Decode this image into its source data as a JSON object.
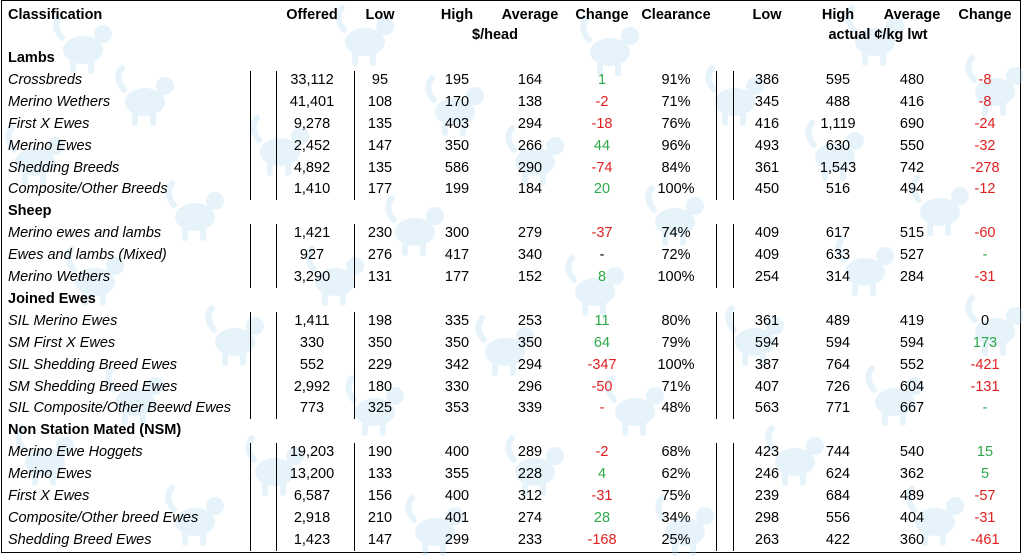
{
  "headers": {
    "classification": "Classification",
    "offered": "Offered",
    "low": "Low",
    "high": "High",
    "average": "Average",
    "change": "Change",
    "clearance": "Clearance",
    "low2": "Low",
    "high2": "High",
    "average2": "Average",
    "change2": "Change",
    "unit_head": "$/head",
    "unit_kg": "actual ¢/kg lwt"
  },
  "colors": {
    "positive": "#2ea84a",
    "negative": "#e02020",
    "watermark": "#a9d6f0"
  },
  "watermark_icon": "sheep-logo-icon",
  "rows": [
    {
      "type": "section",
      "label": "Lambs"
    },
    {
      "type": "data",
      "name": "Crossbreds",
      "offered": "33,112",
      "low": "95",
      "high": "195",
      "avg": "164",
      "chg": "1",
      "chgs": "pos",
      "clr": "91%",
      "low2": "386",
      "high2": "595",
      "avg2": "480",
      "chg2": "-8",
      "chg2s": "neg"
    },
    {
      "type": "data",
      "name": "Merino Wethers",
      "offered": "41,401",
      "low": "108",
      "high": "170",
      "avg": "138",
      "chg": "-2",
      "chgs": "neg",
      "clr": "71%",
      "low2": "345",
      "high2": "488",
      "avg2": "416",
      "chg2": "-8",
      "chg2s": "neg"
    },
    {
      "type": "data",
      "name": "First X Ewes",
      "offered": "9,278",
      "low": "135",
      "high": "403",
      "avg": "294",
      "chg": "-18",
      "chgs": "neg",
      "clr": "76%",
      "low2": "416",
      "high2": "1,119",
      "avg2": "690",
      "chg2": "-24",
      "chg2s": "neg"
    },
    {
      "type": "data",
      "name": "Merino Ewes",
      "offered": "2,452",
      "low": "147",
      "high": "350",
      "avg": "266",
      "chg": "44",
      "chgs": "pos",
      "clr": "96%",
      "low2": "493",
      "high2": "630",
      "avg2": "550",
      "chg2": "-32",
      "chg2s": "neg"
    },
    {
      "type": "data",
      "name": "Shedding Breeds",
      "offered": "4,892",
      "low": "135",
      "high": "586",
      "avg": "290",
      "chg": "-74",
      "chgs": "neg",
      "clr": "84%",
      "low2": "361",
      "high2": "1,543",
      "avg2": "742",
      "chg2": "-278",
      "chg2s": "neg"
    },
    {
      "type": "data",
      "name": "Composite/Other Breeds",
      "offered": "1,410",
      "low": "177",
      "high": "199",
      "avg": "184",
      "chg": "20",
      "chgs": "pos",
      "clr": "100%",
      "low2": "450",
      "high2": "516",
      "avg2": "494",
      "chg2": "-12",
      "chg2s": "neg"
    },
    {
      "type": "section",
      "label": "Sheep"
    },
    {
      "type": "data",
      "name": "Merino ewes and lambs",
      "offered": "1,421",
      "low": "230",
      "high": "300",
      "avg": "279",
      "chg": "-37",
      "chgs": "neg",
      "clr": "74%",
      "low2": "409",
      "high2": "617",
      "avg2": "515",
      "chg2": "-60",
      "chg2s": "neg"
    },
    {
      "type": "data",
      "name": "Ewes and lambs (Mixed)",
      "offered": "927",
      "low": "276",
      "high": "417",
      "avg": "340",
      "chg": "-",
      "chgs": "neu",
      "clr": "72%",
      "low2": "409",
      "high2": "633",
      "avg2": "527",
      "chg2": "-",
      "chg2s": "pos"
    },
    {
      "type": "data",
      "name": "Merino Wethers",
      "offered": "3,290",
      "low": "131",
      "high": "177",
      "avg": "152",
      "chg": "8",
      "chgs": "pos",
      "clr": "100%",
      "low2": "254",
      "high2": "314",
      "avg2": "284",
      "chg2": "-31",
      "chg2s": "neg"
    },
    {
      "type": "section",
      "label": "Joined Ewes"
    },
    {
      "type": "data",
      "name": "SIL Merino Ewes",
      "offered": "1,411",
      "low": "198",
      "high": "335",
      "avg": "253",
      "chg": "11",
      "chgs": "pos",
      "clr": "80%",
      "low2": "361",
      "high2": "489",
      "avg2": "419",
      "chg2": "0",
      "chg2s": "neu"
    },
    {
      "type": "data",
      "name": "SM First X Ewes",
      "offered": "330",
      "low": "350",
      "high": "350",
      "avg": "350",
      "chg": "64",
      "chgs": "pos",
      "clr": "79%",
      "low2": "594",
      "high2": "594",
      "avg2": "594",
      "chg2": "173",
      "chg2s": "pos"
    },
    {
      "type": "data",
      "name": "SIL Shedding Breed Ewes",
      "offered": "552",
      "low": "229",
      "high": "342",
      "avg": "294",
      "chg": "-347",
      "chgs": "neg",
      "clr": "100%",
      "low2": "387",
      "high2": "764",
      "avg2": "552",
      "chg2": "-421",
      "chg2s": "neg"
    },
    {
      "type": "data",
      "name": "SM Shedding Breed Ewes",
      "offered": "2,992",
      "low": "180",
      "high": "330",
      "avg": "296",
      "chg": "-50",
      "chgs": "neg",
      "clr": "71%",
      "low2": "407",
      "high2": "726",
      "avg2": "604",
      "chg2": "-131",
      "chg2s": "neg"
    },
    {
      "type": "data",
      "name": "SIL Composite/Other Beewd Ewes",
      "offered": "773",
      "low": "325",
      "high": "353",
      "avg": "339",
      "chg": "-",
      "chgs": "neg",
      "clr": "48%",
      "low2": "563",
      "high2": "771",
      "avg2": "667",
      "chg2": "-",
      "chg2s": "pos"
    },
    {
      "type": "section",
      "label": "Non Station Mated (NSM)"
    },
    {
      "type": "data",
      "name": "Merino Ewe Hoggets",
      "offered": "19,203",
      "low": "190",
      "high": "400",
      "avg": "289",
      "chg": "-2",
      "chgs": "neg",
      "clr": "68%",
      "low2": "423",
      "high2": "744",
      "avg2": "540",
      "chg2": "15",
      "chg2s": "pos"
    },
    {
      "type": "data",
      "name": "Merino Ewes",
      "offered": "13,200",
      "low": "133",
      "high": "355",
      "avg": "228",
      "chg": "4",
      "chgs": "pos",
      "clr": "62%",
      "low2": "246",
      "high2": "624",
      "avg2": "362",
      "chg2": "5",
      "chg2s": "pos"
    },
    {
      "type": "data",
      "name": "First X Ewes",
      "offered": "6,587",
      "low": "156",
      "high": "400",
      "avg": "312",
      "chg": "-31",
      "chgs": "neg",
      "clr": "75%",
      "low2": "239",
      "high2": "684",
      "avg2": "489",
      "chg2": "-57",
      "chg2s": "neg"
    },
    {
      "type": "data",
      "name": "Composite/Other breed Ewes",
      "offered": "2,918",
      "low": "210",
      "high": "401",
      "avg": "274",
      "chg": "28",
      "chgs": "pos",
      "clr": "34%",
      "low2": "298",
      "high2": "556",
      "avg2": "404",
      "chg2": "-31",
      "chg2s": "neg"
    },
    {
      "type": "data",
      "name": "Shedding Breed Ewes",
      "offered": "1,423",
      "low": "147",
      "high": "299",
      "avg": "233",
      "chg": "-168",
      "chgs": "neg",
      "clr": "25%",
      "low2": "263",
      "high2": "422",
      "avg2": "360",
      "chg2": "-461",
      "chg2s": "neg"
    }
  ]
}
